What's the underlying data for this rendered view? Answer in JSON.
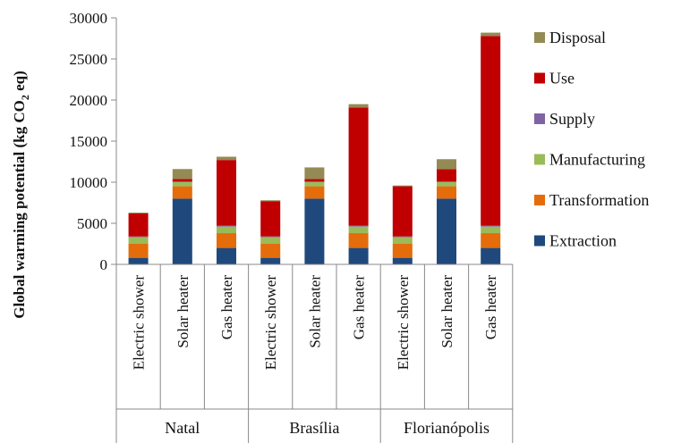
{
  "chart_data": {
    "type": "bar",
    "stacked": true,
    "ylabel": "Global warming potential (kg CO",
    "ylabel_sub": "2",
    "ylabel_suffix": " eq)",
    "ylim": [
      0,
      30000
    ],
    "yticks": [
      0,
      5000,
      10000,
      15000,
      20000,
      25000,
      30000
    ],
    "grid": false,
    "legend_position": "right",
    "groups": [
      "Natal",
      "Brasília",
      "Florianópolis"
    ],
    "categories": [
      "Electric shower",
      "Solar heater",
      "Gas heater",
      "Electric shower",
      "Solar heater",
      "Gas heater",
      "Electric shower",
      "Solar heater",
      "Gas heater"
    ],
    "series": [
      {
        "name": "Extraction",
        "color": "#1f497d",
        "values": [
          800,
          8000,
          2000,
          800,
          8000,
          2000,
          800,
          8000,
          2000
        ]
      },
      {
        "name": "Transformation",
        "color": "#e46c0a",
        "values": [
          1700,
          1500,
          1800,
          1700,
          1500,
          1800,
          1700,
          1500,
          1800
        ]
      },
      {
        "name": "Manufacturing",
        "color": "#9bbb59",
        "values": [
          800,
          500,
          800,
          800,
          500,
          800,
          800,
          500,
          800
        ]
      },
      {
        "name": "Supply",
        "color": "#8064a2",
        "values": [
          100,
          100,
          100,
          100,
          100,
          100,
          100,
          100,
          100
        ]
      },
      {
        "name": "Use",
        "color": "#c00000",
        "values": [
          2800,
          300,
          8000,
          4300,
          300,
          14400,
          6100,
          1500,
          23100
        ]
      },
      {
        "name": "Disposal",
        "color": "#948a54",
        "values": [
          100,
          1200,
          400,
          100,
          1400,
          400,
          100,
          1200,
          400
        ]
      }
    ]
  }
}
